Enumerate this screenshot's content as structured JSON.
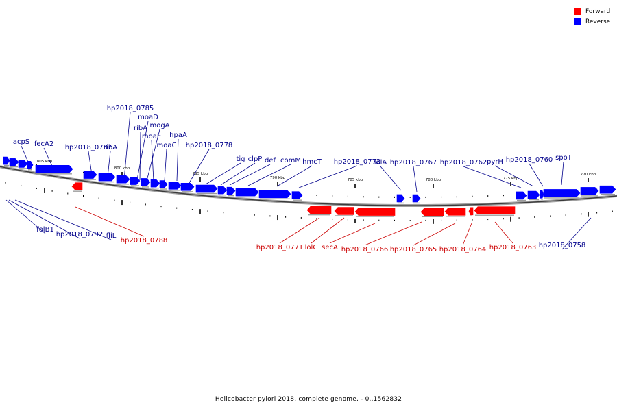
{
  "legend": {
    "forward_label": "Forward",
    "reverse_label": "Reverse",
    "forward_color": "#ff0000",
    "reverse_color": "#0000ff"
  },
  "caption": "Helicobacter pylori 2018, complete genome. - 0..1562832",
  "scale": {
    "unit_label": "kbp",
    "major_ticks": [
      "805 kbp",
      "800 kbp",
      "795 kbp",
      "790 kbp",
      "785 kbp",
      "780 kbp",
      "775 kbp",
      "770 kbp"
    ]
  },
  "genes": {
    "reverse": [
      "acpS",
      "fecA2",
      "hp2018_0787",
      "ribA",
      "hp2018_0785",
      "moaD",
      "ribA",
      "mogA",
      "moaE",
      "moaC",
      "hpaA",
      "hp2018_0778",
      "tig",
      "clpP",
      "def",
      "comM",
      "hmcT",
      "hp2018_0772",
      "lolA",
      "hp2018_0767",
      "hp2018_0762",
      "pyrH",
      "hp2018_0760",
      "spoT",
      "folB1",
      "hp2018_0792",
      "fliL",
      "hp2018_0758"
    ],
    "forward": [
      "hp2018_0788",
      "hp2018_0771",
      "lolC",
      "secA",
      "hp2018_0766",
      "hp2018_0765",
      "hp2018_0764",
      "hp2018_0763"
    ]
  }
}
